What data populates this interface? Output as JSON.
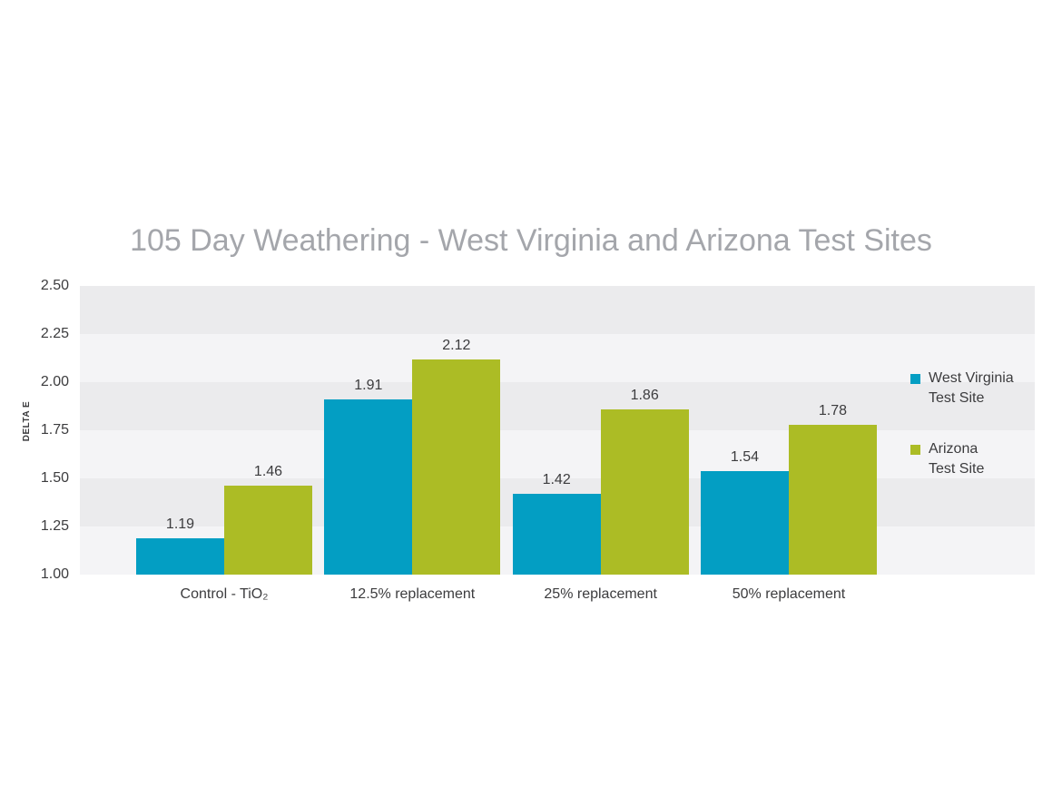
{
  "chart": {
    "title": "105 Day Weathering - West Virginia and Arizona Test Sites",
    "ylabel": "DELTA E"
  },
  "chart_data": {
    "type": "bar",
    "title": "105 Day Weathering - West Virginia and Arizona Test Sites",
    "xlabel": "",
    "ylabel": "DELTA E",
    "categories": [
      "Control - TiO₂",
      "12.5% replacement",
      "25% replacement",
      "50% replacement"
    ],
    "series": [
      {
        "name": "West Virginia Test Site",
        "color": "#039ec3",
        "values": [
          1.19,
          1.91,
          1.42,
          1.54
        ]
      },
      {
        "name": "Arizona Test Site",
        "color": "#acbc25",
        "values": [
          1.46,
          2.12,
          1.86,
          1.78
        ]
      }
    ],
    "ylim": [
      1.0,
      2.5
    ],
    "y_tick_step": 0.25,
    "y_ticks": [
      "2.50",
      "2.25",
      "2.00",
      "1.75",
      "1.50",
      "1.25",
      "1.00"
    ],
    "value_labels": true,
    "value_label_format": "0.00",
    "grid": "alternating horizontal gray bands",
    "band_colors": [
      "#ebebed",
      "#f4f4f6"
    ],
    "legend_position": "right",
    "title_color": "#a4a6ab",
    "text_color": "#3c3c3e",
    "background": "#ffffff"
  },
  "legend": {
    "items": [
      {
        "label_line1": "West Virginia",
        "label_line2": "Test Site",
        "color": "#039ec3"
      },
      {
        "label_line1": "Arizona",
        "label_line2": "Test Site",
        "color": "#acbc25"
      }
    ]
  }
}
